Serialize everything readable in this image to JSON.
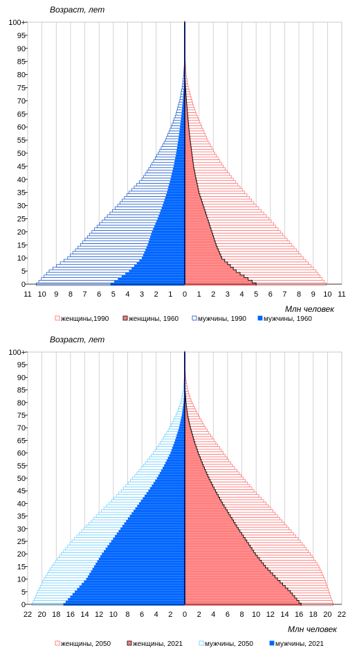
{
  "chart_data": [
    {
      "type": "bar",
      "orientation": "horizontal",
      "subtype": "population-pyramid",
      "ylabel": "Возраст, лет",
      "xlabel": "Млн человек",
      "xlim": [
        -11,
        11
      ],
      "x_tick_labels": [
        "11",
        "10",
        "9",
        "8",
        "7",
        "6",
        "5",
        "4",
        "3",
        "2",
        "1",
        "0",
        "1",
        "2",
        "3",
        "4",
        "5",
        "6",
        "7",
        "8",
        "9",
        "10",
        "11"
      ],
      "y_tick_labels": [
        "0",
        "5",
        "10",
        "15",
        "20",
        "25",
        "30",
        "35",
        "40",
        "45",
        "50",
        "55",
        "60",
        "65",
        "70",
        "75",
        "80",
        "85",
        "90",
        "95",
        "100+"
      ],
      "grid": "vertical",
      "legend_position": "bottom",
      "colors": {
        "women_outline": "#ff6666",
        "women_fill": "#ff8080",
        "men_outline": "#0b4fc8",
        "men_fill": "#0066ff"
      },
      "age_groups": [
        "0",
        "5",
        "10",
        "15",
        "20",
        "25",
        "30",
        "35",
        "40",
        "45",
        "50",
        "55",
        "60",
        "65",
        "70",
        "75",
        "80",
        "85",
        "90",
        "95",
        "100+"
      ],
      "series": [
        {
          "name": "женщины,1990",
          "side": "right",
          "style": "outline",
          "values": [
            9.9,
            9.2,
            8.3,
            7.5,
            6.7,
            5.9,
            5.0,
            4.2,
            3.4,
            2.7,
            2.1,
            1.6,
            1.2,
            0.8,
            0.5,
            0.25,
            0.1,
            0.04,
            0.01,
            0.0,
            0.0
          ]
        },
        {
          "name": "женщины, 1960",
          "side": "right",
          "style": "filled",
          "values": [
            5.0,
            3.6,
            2.6,
            2.2,
            1.9,
            1.6,
            1.3,
            1.0,
            0.8,
            0.62,
            0.5,
            0.38,
            0.28,
            0.2,
            0.12,
            0.06,
            0.02,
            0.01,
            0.0,
            0.0,
            0.0
          ]
        },
        {
          "name": "мужчины, 1990",
          "side": "left",
          "style": "outline",
          "values": [
            10.4,
            9.5,
            8.2,
            7.3,
            6.5,
            5.6,
            4.7,
            3.9,
            3.0,
            2.4,
            1.85,
            1.35,
            0.95,
            0.6,
            0.35,
            0.18,
            0.07,
            0.02,
            0.01,
            0.0,
            0.0
          ]
        },
        {
          "name": "мужчины, 1960",
          "side": "left",
          "style": "filled",
          "values": [
            5.2,
            3.9,
            3.0,
            2.6,
            2.3,
            1.9,
            1.55,
            1.25,
            1.0,
            0.78,
            0.6,
            0.45,
            0.33,
            0.22,
            0.13,
            0.07,
            0.03,
            0.01,
            0.0,
            0.0,
            0.0
          ]
        }
      ],
      "legend": [
        "женщины,1990",
        "женщины, 1960",
        "мужчины, 1990",
        "мужчины, 1960"
      ]
    },
    {
      "type": "bar",
      "orientation": "horizontal",
      "subtype": "population-pyramid",
      "ylabel": "Возраст, лет",
      "xlabel": "Млн человек",
      "xlim": [
        -22,
        22
      ],
      "x_tick_labels": [
        "22",
        "20",
        "18",
        "16",
        "14",
        "12",
        "10",
        "8",
        "6",
        "4",
        "2",
        "0",
        "2",
        "4",
        "6",
        "8",
        "10",
        "12",
        "14",
        "16",
        "18",
        "20",
        "22"
      ],
      "y_tick_labels": [
        "0",
        "5",
        "10",
        "15",
        "20",
        "25",
        "30",
        "35",
        "40",
        "45",
        "50",
        "55",
        "60",
        "65",
        "70",
        "75",
        "80",
        "85",
        "90",
        "95",
        "100+"
      ],
      "grid": "vertical",
      "legend_position": "bottom",
      "colors": {
        "women_outline": "#ff6666",
        "women_fill": "#ff8080",
        "men_outline": "#66ccff",
        "men_fill": "#0066ff"
      },
      "age_groups": [
        "0",
        "5",
        "10",
        "15",
        "20",
        "25",
        "30",
        "35",
        "40",
        "45",
        "50",
        "55",
        "60",
        "65",
        "70",
        "75",
        "80",
        "85",
        "90",
        "95",
        "100+"
      ],
      "series": [
        {
          "name": "женщины, 2050",
          "side": "right",
          "style": "outline",
          "values": [
            20.8,
            20.2,
            19.6,
            18.8,
            17.6,
            16.2,
            14.6,
            13.0,
            11.4,
            9.7,
            8.2,
            6.7,
            5.4,
            4.1,
            2.9,
            1.9,
            1.0,
            0.4,
            0.12,
            0.03,
            0.0
          ]
        },
        {
          "name": "женщины, 2021",
          "side": "right",
          "style": "filled",
          "values": [
            16.3,
            14.8,
            13.0,
            11.3,
            9.9,
            8.7,
            7.5,
            6.4,
            5.3,
            4.3,
            3.4,
            2.6,
            1.9,
            1.3,
            0.8,
            0.4,
            0.18,
            0.06,
            0.02,
            0.0,
            0.0
          ]
        },
        {
          "name": "мужчины, 2050",
          "side": "left",
          "style": "outline",
          "values": [
            21.4,
            20.6,
            19.7,
            18.6,
            17.3,
            15.8,
            14.1,
            12.4,
            10.6,
            8.9,
            7.3,
            5.8,
            4.4,
            3.2,
            2.1,
            1.2,
            0.55,
            0.2,
            0.05,
            0.01,
            0.0
          ]
        },
        {
          "name": "мужчины, 2021",
          "side": "left",
          "style": "filled",
          "values": [
            17.0,
            15.4,
            13.8,
            12.7,
            11.6,
            10.3,
            9.0,
            7.7,
            6.4,
            5.1,
            3.9,
            2.9,
            2.0,
            1.35,
            0.8,
            0.4,
            0.16,
            0.05,
            0.01,
            0.0,
            0.0
          ]
        }
      ],
      "legend": [
        "женщины, 2050",
        "женщины, 2021",
        "мужчины, 2050",
        "мужчины, 2021"
      ]
    }
  ]
}
